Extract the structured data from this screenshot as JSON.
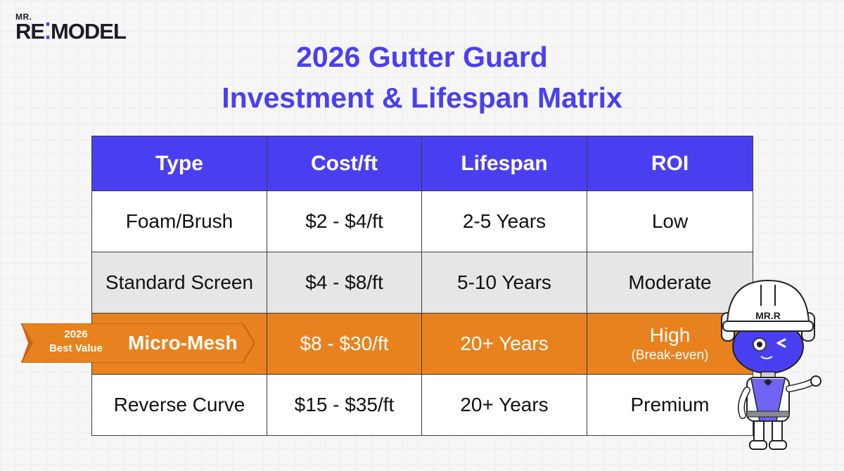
{
  "logo": {
    "prefix": "MR.",
    "brand_start": "RE",
    "brand_mark": "⁚",
    "brand_end": "MODEL"
  },
  "title": {
    "line1": "2026 Gutter Guard",
    "line2": "Investment & Lifespan Matrix"
  },
  "table": {
    "headers": [
      "Type",
      "Cost/ft",
      "Lifespan",
      "ROI"
    ],
    "rows": [
      {
        "type": "Foam/Brush",
        "cost": "$2 - $4/ft",
        "lifespan": "2-5 Years",
        "roi": "Low",
        "roi_sub": ""
      },
      {
        "type": "Standard Screen",
        "cost": "$4 - $8/ft",
        "lifespan": "5-10 Years",
        "roi": "Moderate",
        "roi_sub": ""
      },
      {
        "type": "Micro-Mesh",
        "cost": "$8 - $30/ft",
        "lifespan": "20+ Years",
        "roi": "High",
        "roi_sub": "(Break-even)"
      },
      {
        "type": "Reverse Curve",
        "cost": "$15 - $35/ft",
        "lifespan": "20+ Years",
        "roi": "Premium",
        "roi_sub": ""
      }
    ]
  },
  "ribbon": {
    "line1": "2026",
    "line2": "Best Value"
  },
  "mascot": {
    "helmet_label": "MR.R"
  },
  "colors": {
    "accent": "#4a3ff0",
    "highlight": "#e8821e",
    "alt_row": "#e6e6e6"
  }
}
